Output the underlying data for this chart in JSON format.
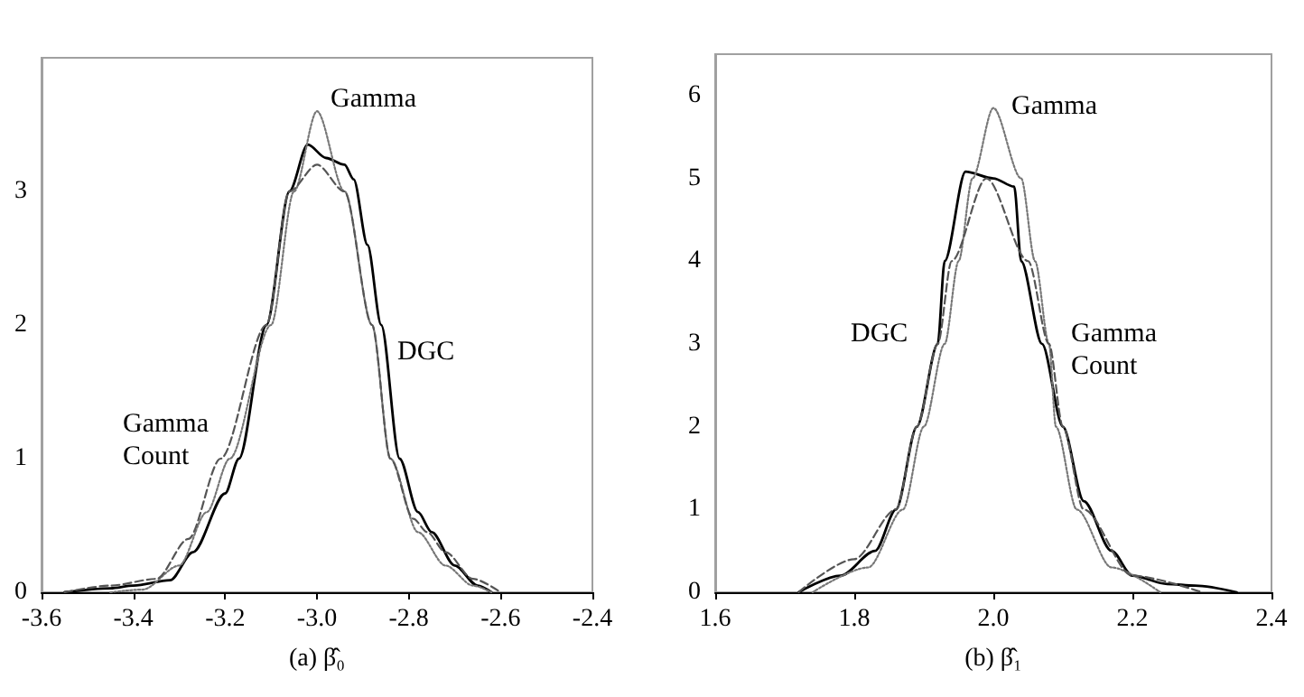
{
  "chart_data": [
    {
      "type": "line",
      "xlabel": "(a) β̂₀",
      "xlim": [
        -3.6,
        -2.4
      ],
      "xticks": [
        -3.6,
        -3.4,
        -3.2,
        {
          "value": -3,
          "label": "-3.0"
        },
        -2.8,
        -2.6,
        -2.4
      ],
      "ylim": [
        0,
        4
      ],
      "yticks": [
        0,
        1,
        2,
        3
      ],
      "grid": false,
      "marker": "none",
      "series": [
        {
          "color": "#000000",
          "line_style": "solid",
          "x": [
            -3.55,
            -3.45,
            -3.4,
            -3.32,
            -3.27,
            -3.2,
            -3.17,
            -3.11,
            -3.06,
            -3.02,
            -2.98,
            -2.94,
            -2.92,
            -2.89,
            -2.86,
            -2.82,
            -2.78,
            -2.75,
            -2.7,
            -2.65,
            -2.62
          ],
          "values": [
            0,
            0.03,
            0.05,
            0.09,
            0.3,
            0.74,
            1,
            2,
            3,
            3.35,
            3.25,
            3.2,
            3.09,
            2.6,
            2,
            1,
            0.6,
            0.45,
            0.2,
            0.05,
            0
          ]
        },
        {
          "color": "#777777",
          "line_style": "dotted",
          "x": [
            -3.45,
            -3.38,
            -3.3,
            -3.24,
            -3.19,
            -3.1,
            -3.05,
            -3.0,
            -2.94,
            -2.88,
            -2.84,
            -2.78,
            -2.72,
            -2.66,
            -2.62
          ],
          "values": [
            0,
            0.02,
            0.2,
            0.6,
            1,
            2,
            3,
            3.6,
            3,
            2,
            1,
            0.45,
            0.2,
            0.05,
            0
          ]
        },
        {
          "color": "#555555",
          "line_style": "dashed",
          "x": [
            -3.55,
            -3.45,
            -3.35,
            -3.28,
            -3.21,
            -3.11,
            -3.06,
            -3.0,
            -2.94,
            -2.88,
            -2.84,
            -2.79,
            -2.76,
            -2.72,
            -2.66,
            -2.6
          ],
          "values": [
            0,
            0.05,
            0.1,
            0.4,
            1,
            2,
            3,
            3.2,
            3,
            2,
            1,
            0.55,
            0.45,
            0.3,
            0.1,
            0
          ]
        }
      ],
      "annotations": [
        "Gamma",
        "DGC",
        "Gamma\nCount"
      ]
    },
    {
      "type": "line",
      "xlabel": "(b) β̂₁",
      "xlim": [
        1.6,
        2.4
      ],
      "xticks": [
        1.6,
        1.8,
        {
          "value": 2,
          "label": "2.0"
        },
        2.2,
        2.4
      ],
      "ylim": [
        0,
        6.5
      ],
      "yticks": [
        0,
        1,
        2,
        3,
        4,
        5,
        6
      ],
      "grid": false,
      "marker": "none",
      "series": [
        {
          "color": "#000000",
          "line_style": "solid",
          "x": [
            1.72,
            1.78,
            1.83,
            1.86,
            1.89,
            1.92,
            1.93,
            1.96,
            2.0,
            2.03,
            2.04,
            2.07,
            2.1,
            2.13,
            2.17,
            2.2,
            2.25,
            2.29,
            2.35
          ],
          "values": [
            0,
            0.2,
            0.5,
            1,
            2,
            3,
            4,
            5.08,
            5.0,
            4.9,
            4,
            3,
            2,
            1.1,
            0.5,
            0.2,
            0.1,
            0.08,
            0
          ]
        },
        {
          "color": "#777777",
          "line_style": "dotted",
          "x": [
            1.74,
            1.82,
            1.87,
            1.9,
            1.93,
            1.95,
            1.97,
            2.0,
            2.04,
            2.06,
            2.08,
            2.09,
            2.12,
            2.17,
            2.24
          ],
          "values": [
            0,
            0.3,
            1,
            2,
            3,
            4,
            5,
            5.85,
            5,
            4,
            3,
            2,
            1,
            0.3,
            0
          ]
        },
        {
          "color": "#555555",
          "line_style": "dashed",
          "x": [
            1.72,
            1.8,
            1.86,
            1.89,
            1.92,
            1.94,
            1.99,
            2.05,
            2.08,
            2.1,
            2.13,
            2.2,
            2.3
          ],
          "values": [
            0,
            0.4,
            1,
            2,
            3,
            4,
            5.0,
            4,
            3,
            2,
            1,
            0.2,
            0
          ]
        }
      ],
      "annotations": [
        "Gamma",
        "DGC",
        "Gamma\nCount"
      ]
    }
  ]
}
